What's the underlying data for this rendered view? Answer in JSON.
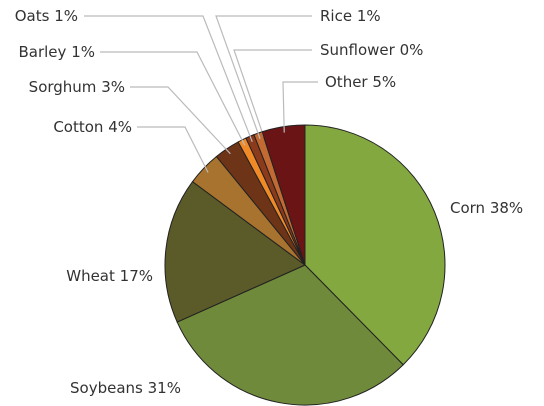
{
  "chart_data": {
    "type": "pie",
    "categories": [
      "Corn",
      "Soybeans",
      "Wheat",
      "Cotton",
      "Sorghum",
      "Barley",
      "Oats",
      "Rice",
      "Sunflower",
      "Other"
    ],
    "values": [
      38,
      31,
      17,
      4,
      3,
      1,
      1,
      1,
      0,
      5
    ],
    "value_labels": [
      "38%",
      "31%",
      "17%",
      "4%",
      "3%",
      "1%",
      "1%",
      "1%",
      "0%",
      "5%"
    ],
    "colors": [
      "#84a840",
      "#6f8a3a",
      "#5b5a29",
      "#a8722f",
      "#6e3418",
      "#f08a26",
      "#8b3a1b",
      "#c26a32",
      "#a0522d",
      "#6a1415"
    ]
  }
}
